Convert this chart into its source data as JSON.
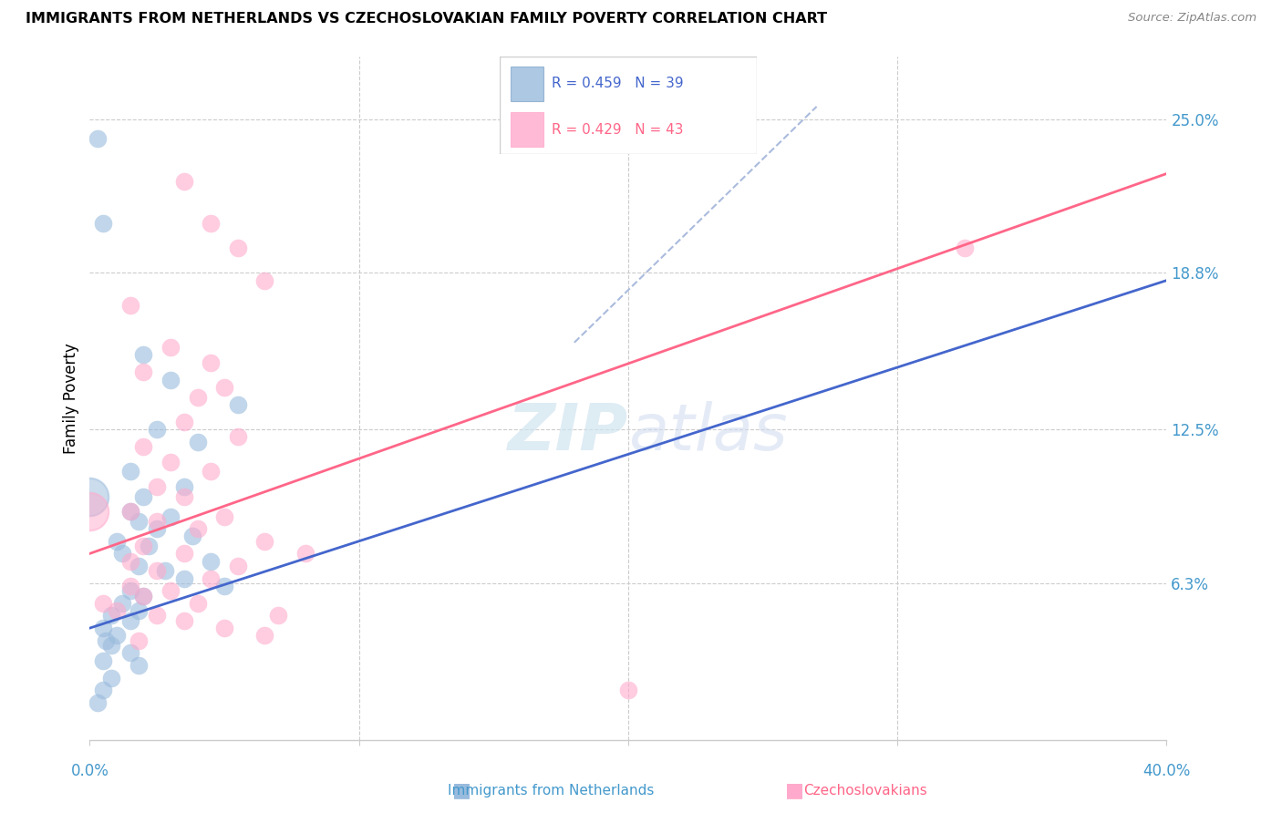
{
  "title": "IMMIGRANTS FROM NETHERLANDS VS CZECHOSLOVAKIAN FAMILY POVERTY CORRELATION CHART",
  "source": "Source: ZipAtlas.com",
  "ylabel": "Family Poverty",
  "ytick_vals": [
    6.3,
    12.5,
    18.8,
    25.0
  ],
  "ytick_labels": [
    "6.3%",
    "12.5%",
    "18.8%",
    "25.0%"
  ],
  "xlim": [
    0.0,
    40.0
  ],
  "ylim": [
    0.0,
    27.5
  ],
  "blue_color": "#99BBDD",
  "pink_color": "#FFAACC",
  "blue_line_color": "#4466CC",
  "pink_line_color": "#FF6688",
  "diag_line_color": "#AABBDD",
  "blue_scatter": [
    [
      0.3,
      24.2
    ],
    [
      0.5,
      20.8
    ],
    [
      2.0,
      15.5
    ],
    [
      3.0,
      14.5
    ],
    [
      5.5,
      13.5
    ],
    [
      2.5,
      12.5
    ],
    [
      4.0,
      12.0
    ],
    [
      1.5,
      10.8
    ],
    [
      3.5,
      10.2
    ],
    [
      2.0,
      9.8
    ],
    [
      1.5,
      9.2
    ],
    [
      3.0,
      9.0
    ],
    [
      1.8,
      8.8
    ],
    [
      2.5,
      8.5
    ],
    [
      3.8,
      8.2
    ],
    [
      1.0,
      8.0
    ],
    [
      2.2,
      7.8
    ],
    [
      1.2,
      7.5
    ],
    [
      4.5,
      7.2
    ],
    [
      1.8,
      7.0
    ],
    [
      2.8,
      6.8
    ],
    [
      3.5,
      6.5
    ],
    [
      5.0,
      6.2
    ],
    [
      1.5,
      6.0
    ],
    [
      2.0,
      5.8
    ],
    [
      1.2,
      5.5
    ],
    [
      1.8,
      5.2
    ],
    [
      0.8,
      5.0
    ],
    [
      1.5,
      4.8
    ],
    [
      0.5,
      4.5
    ],
    [
      1.0,
      4.2
    ],
    [
      0.6,
      4.0
    ],
    [
      0.8,
      3.8
    ],
    [
      1.5,
      3.5
    ],
    [
      0.5,
      3.2
    ],
    [
      1.8,
      3.0
    ],
    [
      0.8,
      2.5
    ],
    [
      0.5,
      2.0
    ],
    [
      0.3,
      1.5
    ]
  ],
  "pink_scatter": [
    [
      3.5,
      22.5
    ],
    [
      4.5,
      20.8
    ],
    [
      5.5,
      19.8
    ],
    [
      1.5,
      17.5
    ],
    [
      6.5,
      18.5
    ],
    [
      3.0,
      15.8
    ],
    [
      4.5,
      15.2
    ],
    [
      2.0,
      14.8
    ],
    [
      5.0,
      14.2
    ],
    [
      4.0,
      13.8
    ],
    [
      3.5,
      12.8
    ],
    [
      5.5,
      12.2
    ],
    [
      2.0,
      11.8
    ],
    [
      3.0,
      11.2
    ],
    [
      4.5,
      10.8
    ],
    [
      2.5,
      10.2
    ],
    [
      3.5,
      9.8
    ],
    [
      1.5,
      9.2
    ],
    [
      5.0,
      9.0
    ],
    [
      2.5,
      8.8
    ],
    [
      4.0,
      8.5
    ],
    [
      6.5,
      8.0
    ],
    [
      2.0,
      7.8
    ],
    [
      3.5,
      7.5
    ],
    [
      1.5,
      7.2
    ],
    [
      5.5,
      7.0
    ],
    [
      2.5,
      6.8
    ],
    [
      4.5,
      6.5
    ],
    [
      1.5,
      6.2
    ],
    [
      3.0,
      6.0
    ],
    [
      2.0,
      5.8
    ],
    [
      4.0,
      5.5
    ],
    [
      1.0,
      5.2
    ],
    [
      2.5,
      5.0
    ],
    [
      3.5,
      4.8
    ],
    [
      5.0,
      4.5
    ],
    [
      6.5,
      4.2
    ],
    [
      20.0,
      2.0
    ],
    [
      8.0,
      7.5
    ],
    [
      32.5,
      19.8
    ],
    [
      0.5,
      5.5
    ],
    [
      7.0,
      5.0
    ],
    [
      1.8,
      4.0
    ]
  ],
  "blue_line_pts": [
    [
      0.0,
      4.5
    ],
    [
      40.0,
      18.5
    ]
  ],
  "pink_line_pts": [
    [
      0.0,
      7.5
    ],
    [
      40.0,
      22.8
    ]
  ],
  "diag_line_pts": [
    [
      18.0,
      16.0
    ],
    [
      27.0,
      25.5
    ]
  ],
  "large_blue_x": 0.0,
  "large_blue_y": 9.8,
  "large_pink_x": 0.0,
  "large_pink_y": 9.2
}
